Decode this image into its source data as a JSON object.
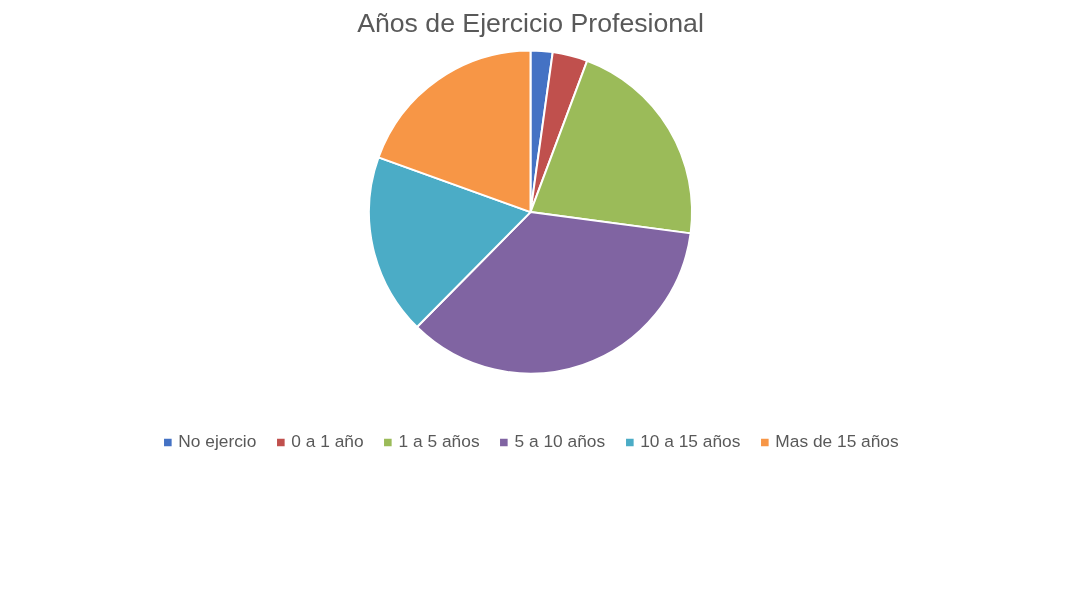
{
  "chart_data": {
    "type": "pie",
    "title": "Años de Ejercicio Profesional",
    "categories": [
      "No ejercio",
      "0 a 1 año",
      "1 a 5 años",
      "5 a 10 años",
      "10 a 15 años",
      "Mas de 15 años"
    ],
    "values": [
      2.2,
      3.5,
      21.4,
      35.3,
      18.1,
      19.5
    ],
    "colors": [
      "#4472c4",
      "#c0504d",
      "#9bbb59",
      "#8064a2",
      "#4bacc6",
      "#f79646"
    ],
    "legend": "bottom"
  }
}
